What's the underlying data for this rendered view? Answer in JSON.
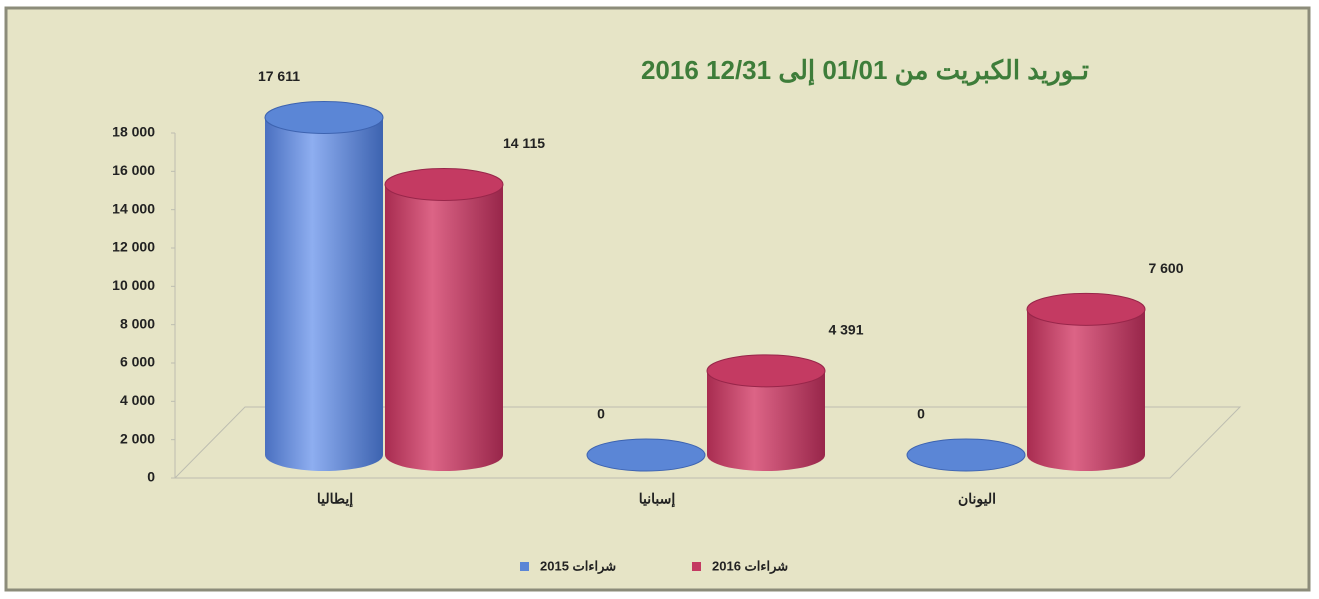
{
  "chart_data": {
    "type": "bar",
    "title": "تـوريد الكبريت من 01/01 إلى 12/31 2016",
    "categories": [
      "إيطاليا",
      "إسبانيا",
      "اليونان"
    ],
    "series": [
      {
        "name": "شراءات 2015",
        "color": "#5b86d6",
        "values": [
          17611,
          0,
          0
        ],
        "value_labels": [
          "17 611",
          "0",
          "0"
        ]
      },
      {
        "name": "شراءات 2016",
        "color": "#c43a62",
        "values": [
          14115,
          4391,
          7600
        ],
        "value_labels": [
          "14 115",
          "4 391",
          "7 600"
        ]
      }
    ],
    "ylim": [
      0,
      18000
    ],
    "yticks": [
      0,
      {
        "value": 2000,
        "label": "2 000"
      },
      {
        "value": 4000,
        "label": "4 000"
      },
      {
        "value": 6000,
        "label": "6 000"
      },
      {
        "value": 8000,
        "label": "8 000"
      },
      {
        "value": 10000,
        "label": "10 000"
      },
      {
        "value": 12000,
        "label": "12 000"
      },
      {
        "value": 14000,
        "label": "14 000"
      },
      {
        "value": 16000,
        "label": "16 000"
      },
      {
        "value": 18000,
        "label": "18 000"
      }
    ],
    "legend": "bottom"
  }
}
